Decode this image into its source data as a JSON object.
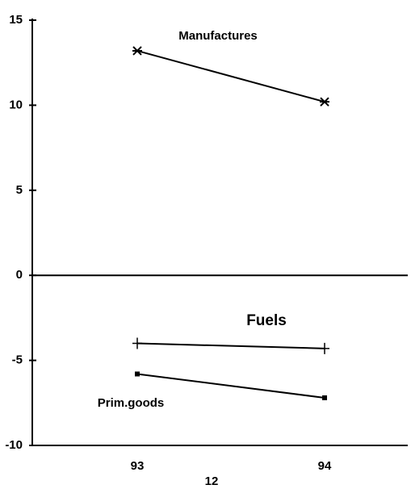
{
  "chart_data": {
    "type": "line",
    "categories": [
      "93",
      "94"
    ],
    "xlabel": "12",
    "series": [
      {
        "name": "Manufactures",
        "color": "#000000",
        "marker": "asterisk",
        "values": [
          13.2,
          10.2
        ]
      },
      {
        "name": "Fuels",
        "color": "#000000",
        "marker": "plus",
        "values": [
          -4.0,
          -4.3
        ]
      },
      {
        "name": "Prim.goods",
        "color": "#000000",
        "marker": "square",
        "values": [
          -5.8,
          -7.2
        ]
      }
    ],
    "ylim": [
      -10,
      15
    ],
    "yticks": [
      15,
      10,
      5,
      0,
      -5,
      -10
    ],
    "grid": false
  }
}
